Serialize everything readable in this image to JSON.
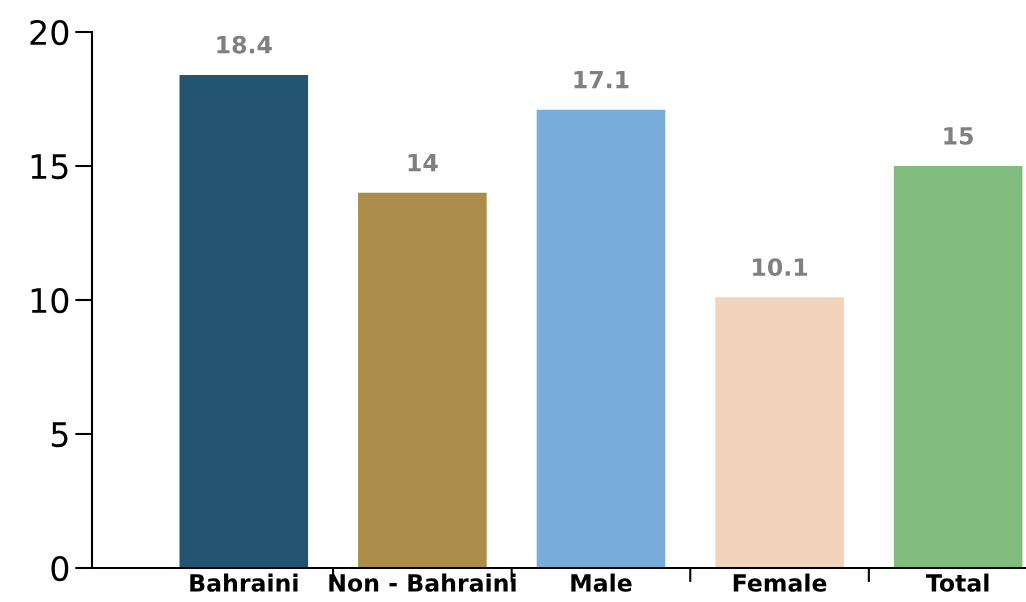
{
  "chart_data": {
    "type": "bar",
    "categories": [
      "Bahraini",
      "Non - Bahraini",
      "Male",
      "Female",
      "Total"
    ],
    "values": [
      18.4,
      14,
      17.1,
      10.1,
      15
    ],
    "colors": [
      "#22536f",
      "#ab8c48",
      "#78acd9",
      "#f2d3bb",
      "#80bc7e"
    ],
    "ylim": [
      0,
      20
    ],
    "yticks": [
      0,
      5,
      10,
      15,
      20
    ],
    "data_labels": true,
    "grid": false,
    "legend": false
  }
}
